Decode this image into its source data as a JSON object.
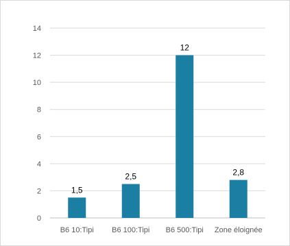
{
  "chart_data": {
    "type": "bar",
    "categories": [
      "B6 10:Tipi",
      "B6 100:Tipi",
      "B6 500:Tipi",
      "Zone éloignée"
    ],
    "values": [
      1.5,
      2.5,
      12,
      2.8
    ],
    "data_labels": [
      "1,5",
      "2,5",
      "12",
      "2,8"
    ],
    "y_ticks": [
      0,
      2,
      4,
      6,
      8,
      10,
      12,
      14
    ],
    "ylim": [
      0,
      14
    ],
    "grid": true,
    "legend": "none",
    "colors": {
      "bar": "#1A7FA3",
      "grid": "#d9d9d9",
      "axis": "#bfbfbf"
    }
  }
}
